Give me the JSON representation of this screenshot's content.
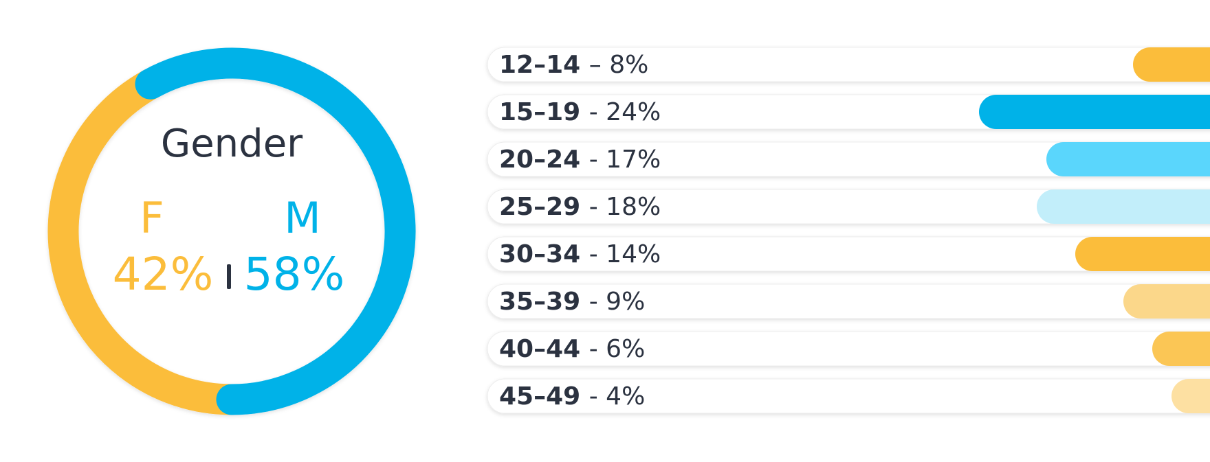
{
  "chart_data": [
    {
      "type": "donut",
      "title": "Gender",
      "categories": [
        "F",
        "M"
      ],
      "values": [
        42,
        58
      ],
      "value_labels": [
        "42%",
        "58%"
      ],
      "colors": [
        "#fbbd3b",
        "#00b2e8"
      ]
    },
    {
      "type": "bar",
      "categories": [
        "12–14",
        "15–19",
        "20–24",
        "25–29",
        "30–34",
        "35–39",
        "40–44",
        "45–49"
      ],
      "values": [
        8,
        24,
        17,
        18,
        14,
        9,
        6,
        4
      ],
      "value_labels": [
        "– 8%",
        "- 24%",
        "- 17%",
        "- 18%",
        "- 14%",
        "- 9%",
        "- 6%",
        "- 4%"
      ],
      "colors": [
        "#fbbd3b",
        "#00b2e8",
        "#5ad6fc",
        "#c2eefa",
        "#fbbd3b",
        "#fbd78a",
        "#fbc655",
        "#fde0a2"
      ]
    }
  ]
}
